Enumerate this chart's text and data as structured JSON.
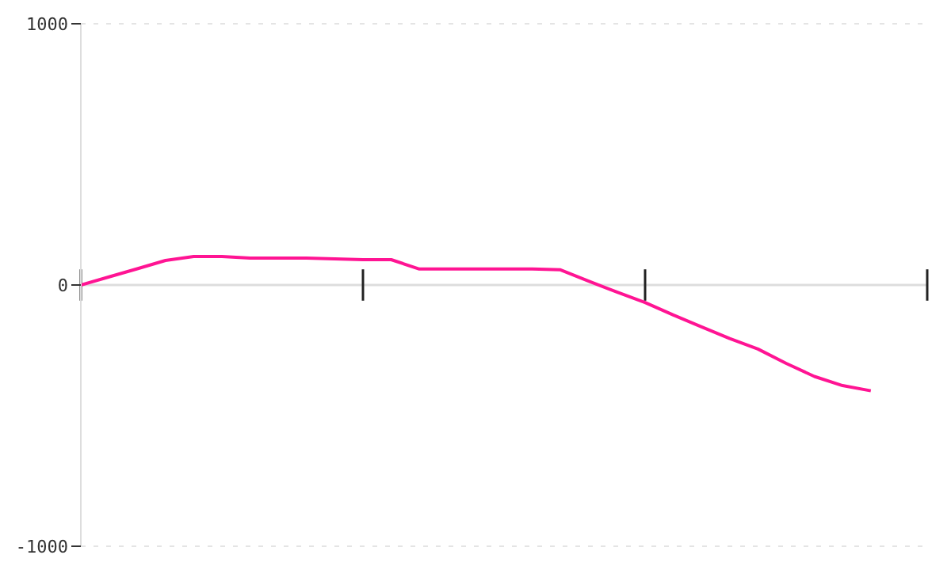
{
  "chart_data": {
    "type": "line",
    "categories": [
      null,
      null,
      null,
      null,
      null,
      null,
      null,
      null,
      null,
      null,
      null,
      null,
      null,
      null,
      null,
      null,
      null,
      null,
      null,
      null,
      null,
      null,
      null,
      null,
      null,
      null,
      null,
      null,
      null,
      null,
      null
    ],
    "series": [
      {
        "color": "#ff1493",
        "values": [
          0,
          31,
          62,
          94,
          109,
          109,
          103,
          103,
          103,
          100,
          97,
          97,
          61,
          61,
          61,
          61,
          61,
          58,
          15,
          -27,
          -67,
          -115,
          -160,
          -205,
          -245,
          -300,
          -350,
          -385,
          -405,
          null,
          null
        ]
      }
    ],
    "ylim": [
      -1000,
      1000
    ],
    "yticks": [
      -1000,
      0,
      1000
    ],
    "grid": "y",
    "marker": "none",
    "line_style": "solid"
  }
}
